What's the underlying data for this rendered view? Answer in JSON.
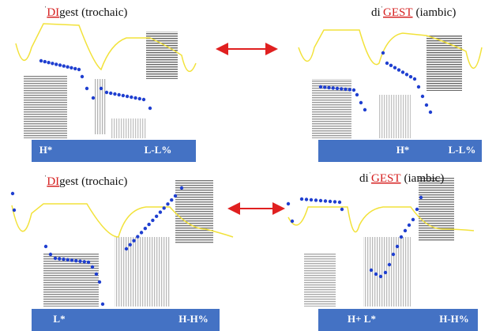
{
  "panels": [
    {
      "title": [
        "ˈ",
        "DI",
        "gest (trochaic)"
      ],
      "tones": [
        "H*",
        "L-L%"
      ]
    },
    {
      "title": [
        "di",
        "ˈ",
        "GEST",
        "(iambic)"
      ],
      "tones": [
        "H*",
        "L-L%"
      ]
    },
    {
      "title": [
        "ˈ",
        "DI",
        "gest (trochaic)"
      ],
      "tones": [
        "L*",
        "H-H%"
      ]
    },
    {
      "title": [
        "di",
        "ˈ",
        "GEST",
        "(iambic)"
      ],
      "tones": [
        "H+ L*",
        "H-H%"
      ]
    }
  ]
}
